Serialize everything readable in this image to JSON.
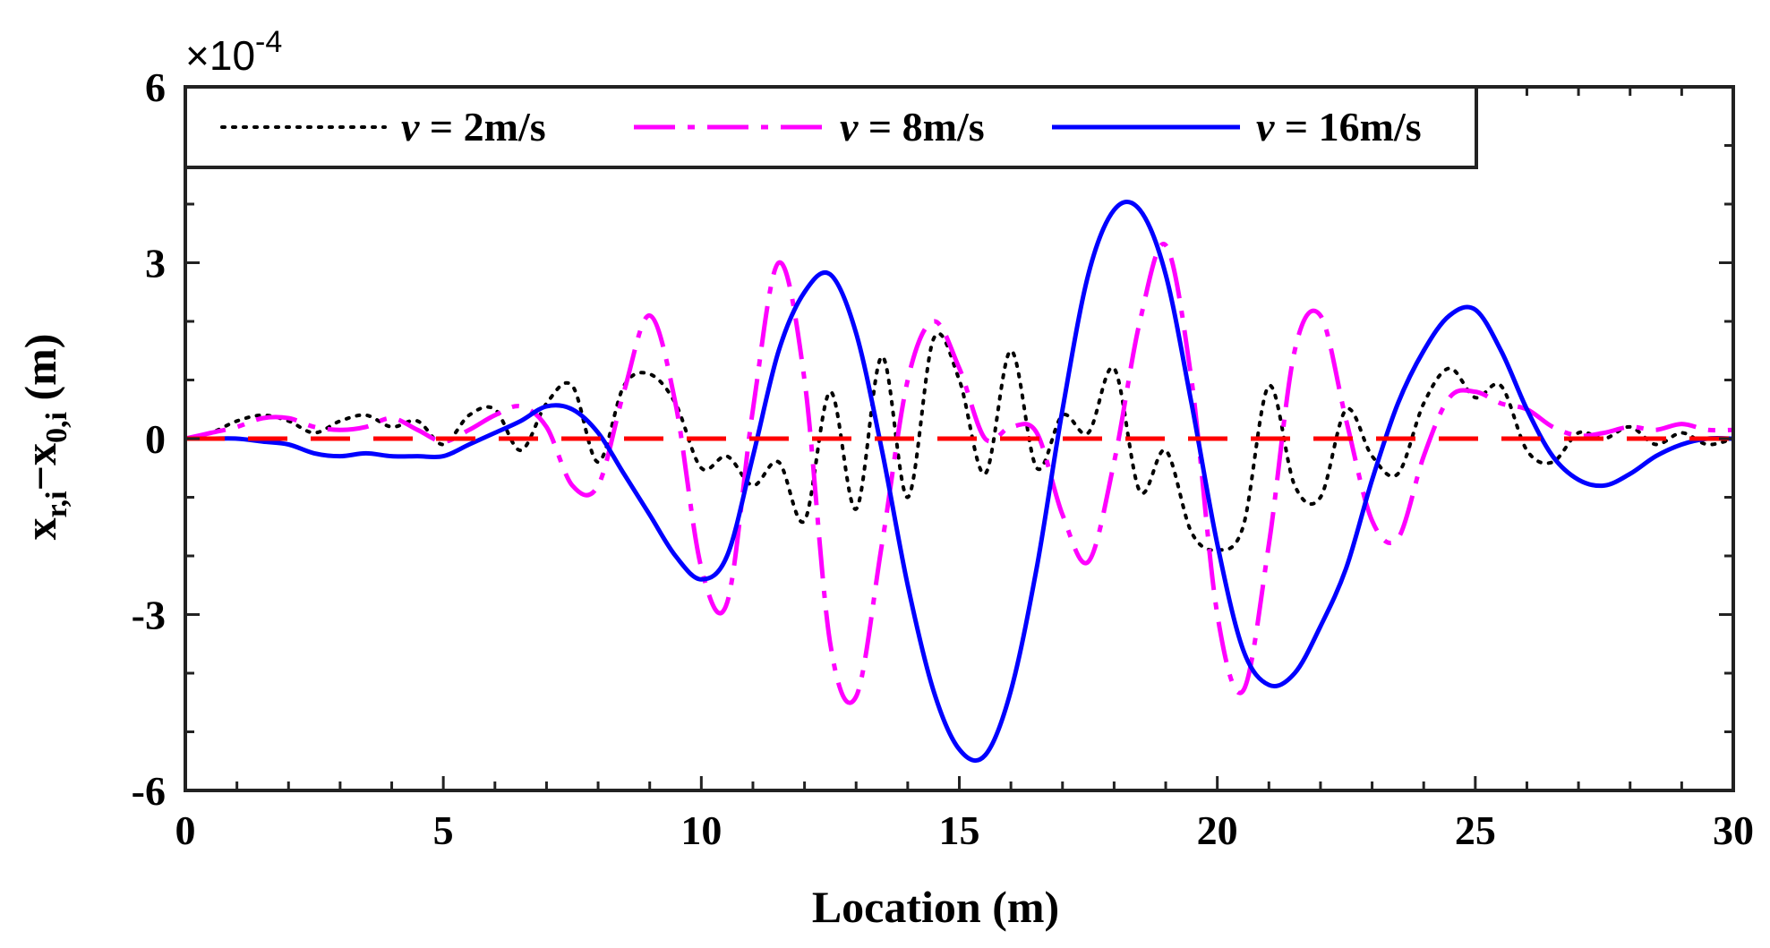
{
  "chart_data": {
    "type": "line",
    "title": "",
    "xlabel": "Location (m)",
    "ylabel": {
      "main": "x",
      "sub1": "r,i",
      "minus": "−x",
      "sub2": "0,i",
      "unit": " (m)"
    },
    "y_multiplier": {
      "base": "×10",
      "exponent": "-4"
    },
    "xlim": [
      0,
      30
    ],
    "ylim": [
      -6,
      6
    ],
    "xticks": [
      0,
      5,
      10,
      15,
      20,
      25,
      30
    ],
    "xtick_labels": [
      "0",
      "5",
      "10",
      "15",
      "20",
      "25",
      "30"
    ],
    "yticks": [
      -6,
      -3,
      0,
      3,
      6
    ],
    "ytick_labels": [
      "-6",
      "-3",
      "0",
      "3",
      "6"
    ],
    "grid": false,
    "legend_position": "top",
    "reference_line": {
      "y": 0,
      "color": "#ff0000",
      "style": "dashed"
    },
    "series": [
      {
        "name_var": "v",
        "name_rest": " = 2m/s",
        "color": "#000000",
        "style": "dotted",
        "x": [
          0,
          0.5,
          1.0,
          1.5,
          2.0,
          2.5,
          3.0,
          3.5,
          4.0,
          4.5,
          5.0,
          5.5,
          6.0,
          6.5,
          7.0,
          7.5,
          8.0,
          8.5,
          9.0,
          9.5,
          10.0,
          10.5,
          11.0,
          11.5,
          12.0,
          12.5,
          13.0,
          13.5,
          14.0,
          14.5,
          15.0,
          15.5,
          16.0,
          16.5,
          17.0,
          17.5,
          18.0,
          18.5,
          19.0,
          19.5,
          20.0,
          20.5,
          21.0,
          21.5,
          22.0,
          22.5,
          23.0,
          23.5,
          24.0,
          24.5,
          25.0,
          25.5,
          26.0,
          26.5,
          27.0,
          27.5,
          28.0,
          28.5,
          29.0,
          29.5,
          30.0
        ],
        "values": [
          0,
          0.1,
          0.3,
          0.4,
          0.3,
          0.1,
          0.3,
          0.4,
          0.2,
          0.3,
          -0.1,
          0.4,
          0.5,
          -0.2,
          0.6,
          0.9,
          -0.4,
          0.9,
          1.1,
          0.6,
          -0.5,
          -0.3,
          -0.8,
          -0.4,
          -1.4,
          0.8,
          -1.2,
          1.4,
          -1.0,
          1.7,
          1.0,
          -0.6,
          1.5,
          -0.5,
          0.4,
          0.1,
          1.2,
          -0.9,
          -0.2,
          -1.6,
          -1.9,
          -1.5,
          0.9,
          -0.8,
          -1.0,
          0.5,
          -0.3,
          -0.6,
          0.6,
          1.2,
          0.7,
          0.9,
          -0.2,
          -0.4,
          0.1,
          0.0,
          0.2,
          -0.1,
          0.1,
          -0.1,
          0.0
        ]
      },
      {
        "name_var": "v",
        "name_rest": " = 8m/s",
        "color": "#ff00ff",
        "style": "dashdot",
        "x": [
          0,
          0.5,
          1.0,
          1.5,
          2.0,
          2.5,
          3.0,
          3.5,
          4.0,
          4.5,
          5.0,
          5.5,
          6.0,
          6.5,
          7.0,
          7.5,
          8.0,
          8.5,
          9.0,
          9.5,
          10.0,
          10.5,
          11.0,
          11.5,
          12.0,
          12.5,
          13.0,
          13.5,
          14.0,
          14.5,
          15.0,
          15.5,
          16.0,
          16.5,
          17.0,
          17.5,
          18.0,
          18.5,
          19.0,
          19.5,
          20.0,
          20.5,
          21.0,
          21.5,
          22.0,
          22.5,
          23.0,
          23.5,
          24.0,
          24.5,
          25.0,
          25.5,
          26.0,
          26.5,
          27.0,
          27.5,
          28.0,
          28.5,
          29.0,
          29.5,
          30.0
        ],
        "values": [
          0,
          0.1,
          0.2,
          0.35,
          0.35,
          0.2,
          0.15,
          0.2,
          0.35,
          0.15,
          -0.05,
          0.15,
          0.4,
          0.55,
          0.2,
          -0.8,
          -0.8,
          0.8,
          2.1,
          0.6,
          -2.2,
          -2.8,
          0.5,
          3.0,
          1.0,
          -3.5,
          -4.4,
          -1.8,
          1.0,
          2.0,
          1.2,
          0.0,
          0.2,
          0.1,
          -1.3,
          -2.1,
          -0.4,
          2.0,
          3.3,
          1.0,
          -3.0,
          -4.3,
          -1.8,
          1.5,
          2.1,
          0.3,
          -1.4,
          -1.7,
          -0.3,
          0.7,
          0.8,
          0.6,
          0.5,
          0.2,
          0.05,
          0.1,
          0.2,
          0.15,
          0.25,
          0.15,
          0.15
        ]
      },
      {
        "name_var": "v",
        "name_rest": " = 16m/s",
        "color": "#0000ff",
        "style": "solid",
        "x": [
          0,
          0.5,
          1.0,
          1.5,
          2.0,
          2.5,
          3.0,
          3.5,
          4.0,
          4.5,
          5.0,
          5.5,
          6.0,
          6.5,
          7.0,
          7.5,
          8.0,
          8.5,
          9.0,
          9.5,
          10.0,
          10.5,
          11.0,
          11.5,
          12.0,
          12.5,
          13.0,
          13.5,
          14.0,
          14.5,
          15.0,
          15.5,
          16.0,
          16.5,
          17.0,
          17.5,
          18.0,
          18.5,
          19.0,
          19.5,
          20.0,
          20.5,
          21.0,
          21.5,
          22.0,
          22.5,
          23.0,
          23.5,
          24.0,
          24.5,
          25.0,
          25.5,
          26.0,
          26.5,
          27.0,
          27.5,
          28.0,
          28.5,
          29.0,
          29.5,
          30.0
        ],
        "values": [
          0,
          0,
          0,
          -0.05,
          -0.1,
          -0.25,
          -0.3,
          -0.25,
          -0.3,
          -0.3,
          -0.3,
          -0.1,
          0.1,
          0.3,
          0.55,
          0.5,
          0.1,
          -0.6,
          -1.3,
          -2.0,
          -2.4,
          -2.0,
          -0.3,
          1.5,
          2.5,
          2.8,
          1.8,
          -0.2,
          -2.5,
          -4.3,
          -5.3,
          -5.4,
          -4.3,
          -2.2,
          0.5,
          2.8,
          3.9,
          3.9,
          2.8,
          0.6,
          -1.8,
          -3.6,
          -4.2,
          -4.0,
          -3.2,
          -2.2,
          -0.7,
          0.6,
          1.5,
          2.1,
          2.2,
          1.5,
          0.5,
          -0.3,
          -0.7,
          -0.8,
          -0.6,
          -0.3,
          -0.1,
          0,
          0
        ]
      }
    ]
  }
}
